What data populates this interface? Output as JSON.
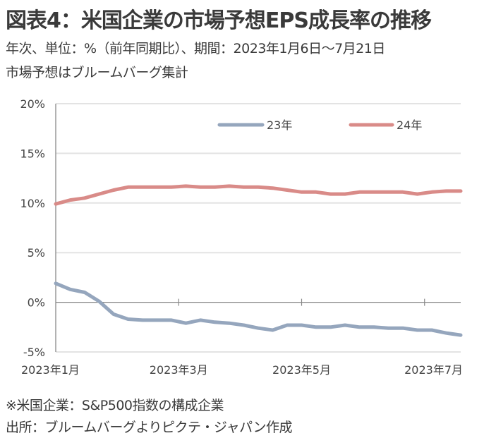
{
  "header": {
    "title": "図表4：米国企業の市場予想EPS成長率の推移",
    "subtitle_line1": "年次、単位：%（前年同期比）、期間：2023年1月6日～7月21日",
    "subtitle_line2": "市場予想はブルームバーグ集計"
  },
  "footer": {
    "note": "※米国企業：S&P500指数の構成企業",
    "source": "出所：ブルームバーグよりピクテ・ジャパン作成"
  },
  "chart_data": {
    "type": "line",
    "title": "図表4：米国企業の市場予想EPS成長率の推移",
    "xlabel": "",
    "ylabel": "%",
    "ylim": [
      -5,
      20
    ],
    "yticks": [
      20,
      15,
      10,
      5,
      0,
      -5
    ],
    "ytick_labels": [
      "20%",
      "15%",
      "10%",
      "5%",
      "0%",
      "-5%"
    ],
    "xtick_labels": [
      "2023年1月",
      "2023年3月",
      "2023年5月",
      "2023年7月"
    ],
    "xtick_indices": [
      0,
      8.5,
      17,
      25.5
    ],
    "grid": true,
    "legend_position": "top-right",
    "x": [
      "2023-01-06",
      "2023-01-13",
      "2023-01-20",
      "2023-01-27",
      "2023-02-03",
      "2023-02-10",
      "2023-02-17",
      "2023-02-24",
      "2023-03-03",
      "2023-03-10",
      "2023-03-17",
      "2023-03-24",
      "2023-03-31",
      "2023-04-07",
      "2023-04-14",
      "2023-04-21",
      "2023-04-28",
      "2023-05-05",
      "2023-05-12",
      "2023-05-19",
      "2023-05-26",
      "2023-06-02",
      "2023-06-09",
      "2023-06-16",
      "2023-06-23",
      "2023-06-30",
      "2023-07-07",
      "2023-07-14",
      "2023-07-21"
    ],
    "series": [
      {
        "name": "23年",
        "color": "#95a6bd",
        "values": [
          1.9,
          1.3,
          1.0,
          0.1,
          -1.2,
          -1.7,
          -1.8,
          -1.8,
          -1.8,
          -2.1,
          -1.8,
          -2.0,
          -2.1,
          -2.3,
          -2.6,
          -2.8,
          -2.3,
          -2.3,
          -2.5,
          -2.5,
          -2.3,
          -2.5,
          -2.5,
          -2.6,
          -2.6,
          -2.8,
          -2.8,
          -3.1,
          -3.3
        ]
      },
      {
        "name": "24年",
        "color": "#d98b88",
        "values": [
          9.9,
          10.3,
          10.5,
          10.9,
          11.3,
          11.6,
          11.6,
          11.6,
          11.6,
          11.7,
          11.6,
          11.6,
          11.7,
          11.6,
          11.6,
          11.5,
          11.3,
          11.1,
          11.1,
          10.9,
          10.9,
          11.1,
          11.1,
          11.1,
          11.1,
          10.9,
          11.1,
          11.2,
          11.2
        ]
      }
    ],
    "colors": {
      "gridline": "#e3e3e3",
      "axis": "#888888"
    }
  }
}
